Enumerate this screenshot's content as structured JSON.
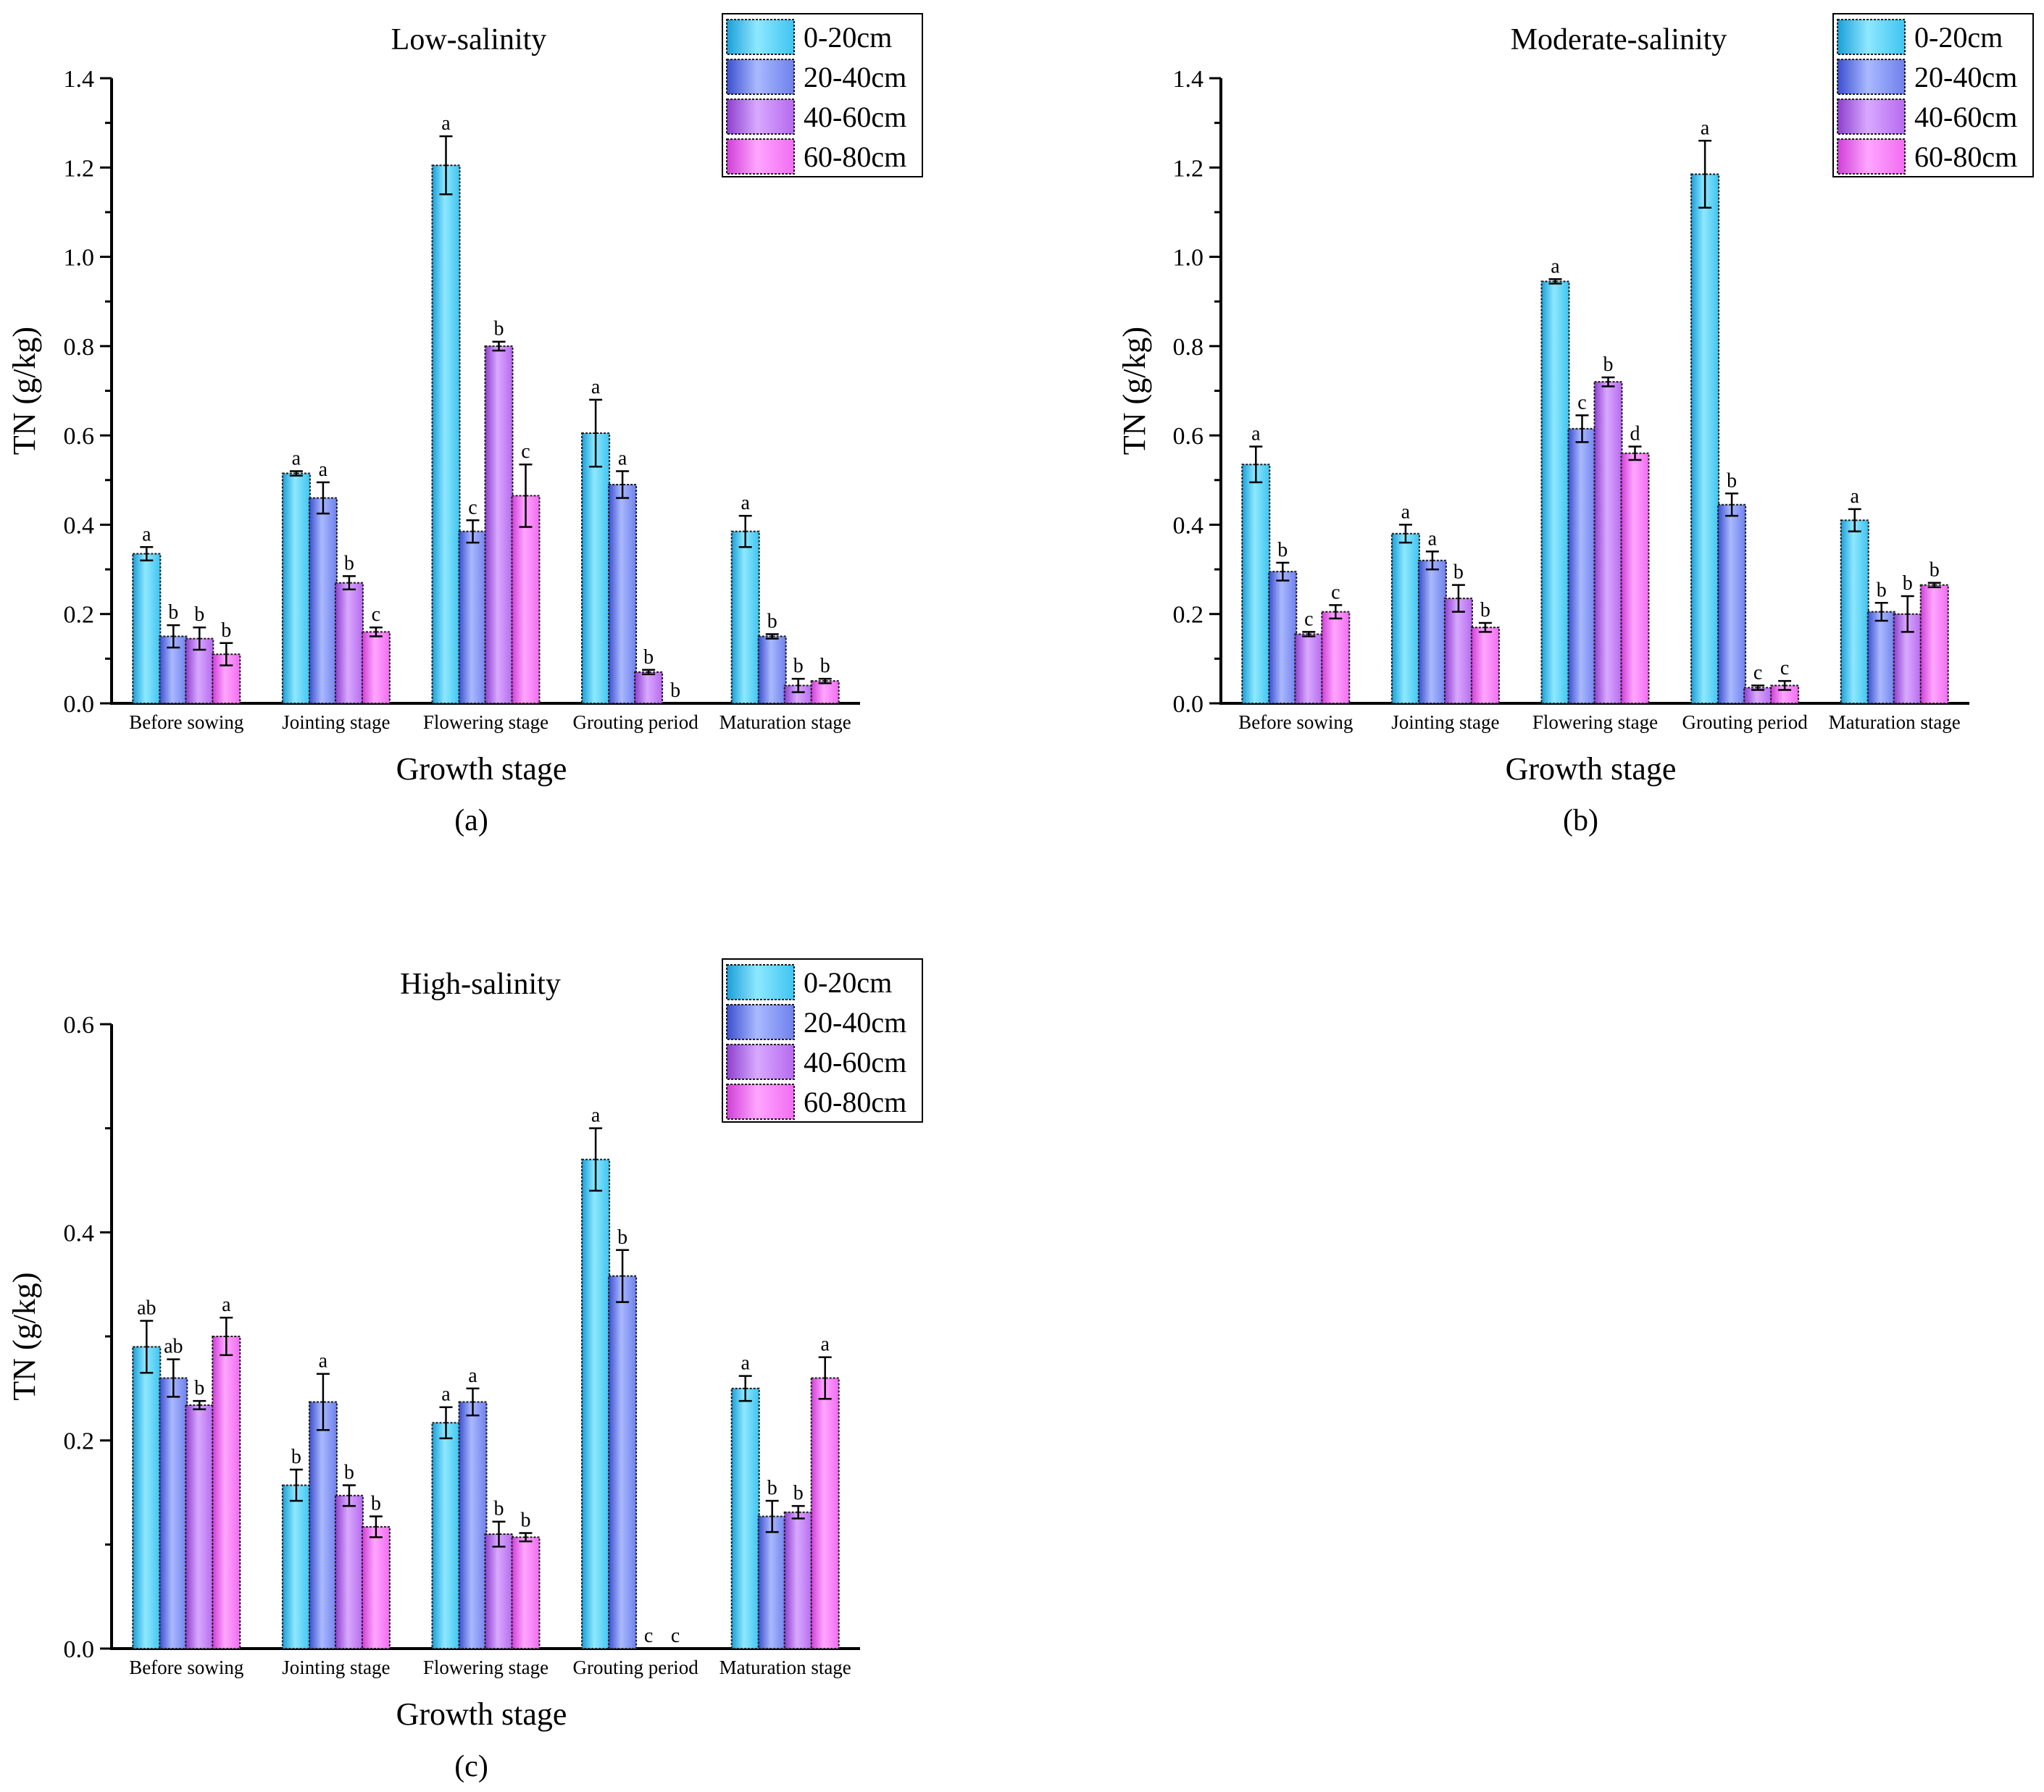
{
  "series_colors": {
    "0-20cm": {
      "light": "#8ee8ff",
      "mid": "#3fc4f0",
      "dark": "#1a9fd8"
    },
    "20-40cm": {
      "light": "#a9b9ff",
      "mid": "#6f80ec",
      "dark": "#3c4fcf"
    },
    "40-60cm": {
      "light": "#d8a9ff",
      "mid": "#b76aee",
      "dark": "#8d3fce"
    },
    "60-80cm": {
      "light": "#ffa6ff",
      "mid": "#f26cf2",
      "dark": "#cf3fd7"
    }
  },
  "chart_data": [
    {
      "type": "bar",
      "title": "Low-salinity",
      "panel_label": "(a)",
      "xlabel": "Growth stage",
      "ylabel": "TN (g/kg)",
      "ylim": [
        0,
        1.4
      ],
      "yticks": [
        "0.0",
        "0.2",
        "0.4",
        "0.6",
        "0.8",
        "1.0",
        "1.2",
        "1.4"
      ],
      "legend_position": "top-right",
      "categories": [
        "Before sowing",
        "Jointing stage",
        "Flowering stage",
        "Grouting period",
        "Maturation stage"
      ],
      "series": [
        {
          "name": "0-20cm",
          "values": [
            0.335,
            0.515,
            1.205,
            0.605,
            0.385
          ],
          "errors": [
            0.015,
            0.005,
            0.065,
            0.075,
            0.035
          ],
          "letters": [
            "a",
            "a",
            "a",
            "a",
            "a"
          ]
        },
        {
          "name": "20-40cm",
          "values": [
            0.15,
            0.46,
            0.385,
            0.49,
            0.15
          ],
          "errors": [
            0.025,
            0.035,
            0.025,
            0.03,
            0.005
          ],
          "letters": [
            "b",
            "a",
            "c",
            "a",
            "b"
          ]
        },
        {
          "name": "40-60cm",
          "values": [
            0.145,
            0.27,
            0.8,
            0.07,
            0.04
          ],
          "errors": [
            0.025,
            0.015,
            0.01,
            0.005,
            0.015
          ],
          "letters": [
            "b",
            "b",
            "b",
            "b",
            "b"
          ]
        },
        {
          "name": "60-80cm",
          "values": [
            0.11,
            0.16,
            0.465,
            0.0,
            0.05
          ],
          "errors": [
            0.025,
            0.01,
            0.07,
            0.0,
            0.005
          ],
          "letters": [
            "b",
            "c",
            "c",
            "b",
            "b"
          ]
        }
      ]
    },
    {
      "type": "bar",
      "title": "Moderate-salinity",
      "panel_label": "(b)",
      "xlabel": "Growth stage",
      "ylabel": "TN (g/kg)",
      "ylim": [
        0,
        1.4
      ],
      "yticks": [
        "0.0",
        "0.2",
        "0.4",
        "0.6",
        "0.8",
        "1.0",
        "1.2",
        "1.4"
      ],
      "legend_position": "top-right",
      "categories": [
        "Before sowing",
        "Jointing stage",
        "Flowering stage",
        "Grouting period",
        "Maturation stage"
      ],
      "series": [
        {
          "name": "0-20cm",
          "values": [
            0.535,
            0.38,
            0.945,
            1.185,
            0.41
          ],
          "errors": [
            0.04,
            0.02,
            0.005,
            0.075,
            0.025
          ],
          "letters": [
            "a",
            "a",
            "a",
            "a",
            "a"
          ]
        },
        {
          "name": "20-40cm",
          "values": [
            0.295,
            0.32,
            0.615,
            0.445,
            0.205
          ],
          "errors": [
            0.02,
            0.02,
            0.03,
            0.025,
            0.02
          ],
          "letters": [
            "b",
            "a",
            "c",
            "b",
            "b"
          ]
        },
        {
          "name": "40-60cm",
          "values": [
            0.155,
            0.235,
            0.72,
            0.035,
            0.2
          ],
          "errors": [
            0.005,
            0.03,
            0.01,
            0.005,
            0.04
          ],
          "letters": [
            "c",
            "b",
            "b",
            "c",
            "b"
          ]
        },
        {
          "name": "60-80cm",
          "values": [
            0.205,
            0.17,
            0.56,
            0.04,
            0.265
          ],
          "errors": [
            0.015,
            0.01,
            0.015,
            0.01,
            0.005
          ],
          "letters": [
            "c",
            "b",
            "d",
            "c",
            "b"
          ]
        }
      ]
    },
    {
      "type": "bar",
      "title": "High-salinity",
      "panel_label": "(c)",
      "xlabel": "Growth stage",
      "ylabel": "TN (g/kg)",
      "ylim": [
        0,
        0.6
      ],
      "yticks": [
        "0.0",
        "0.2",
        "0.4",
        "0.6"
      ],
      "legend_position": "top-right",
      "categories": [
        "Before sowing",
        "Jointing stage",
        "Flowering stage",
        "Grouting period",
        "Maturation stage"
      ],
      "series": [
        {
          "name": "0-20cm",
          "values": [
            0.29,
            0.157,
            0.217,
            0.47,
            0.25
          ],
          "errors": [
            0.025,
            0.015,
            0.015,
            0.03,
            0.012
          ],
          "letters": [
            "ab",
            "b",
            "a",
            "a",
            "a"
          ]
        },
        {
          "name": "20-40cm",
          "values": [
            0.26,
            0.237,
            0.237,
            0.358,
            0.127
          ],
          "errors": [
            0.018,
            0.027,
            0.013,
            0.025,
            0.015
          ],
          "letters": [
            "ab",
            "a",
            "a",
            "b",
            "b"
          ]
        },
        {
          "name": "40-60cm",
          "values": [
            0.234,
            0.147,
            0.11,
            0.0,
            0.131
          ],
          "errors": [
            0.004,
            0.01,
            0.012,
            0.0,
            0.006
          ],
          "letters": [
            "b",
            "b",
            "b",
            "c",
            "b"
          ]
        },
        {
          "name": "60-80cm",
          "values": [
            0.3,
            0.117,
            0.107,
            0.0,
            0.26
          ],
          "errors": [
            0.018,
            0.01,
            0.004,
            0.0,
            0.02
          ],
          "letters": [
            "a",
            "b",
            "b",
            "c",
            "a"
          ]
        }
      ]
    }
  ]
}
